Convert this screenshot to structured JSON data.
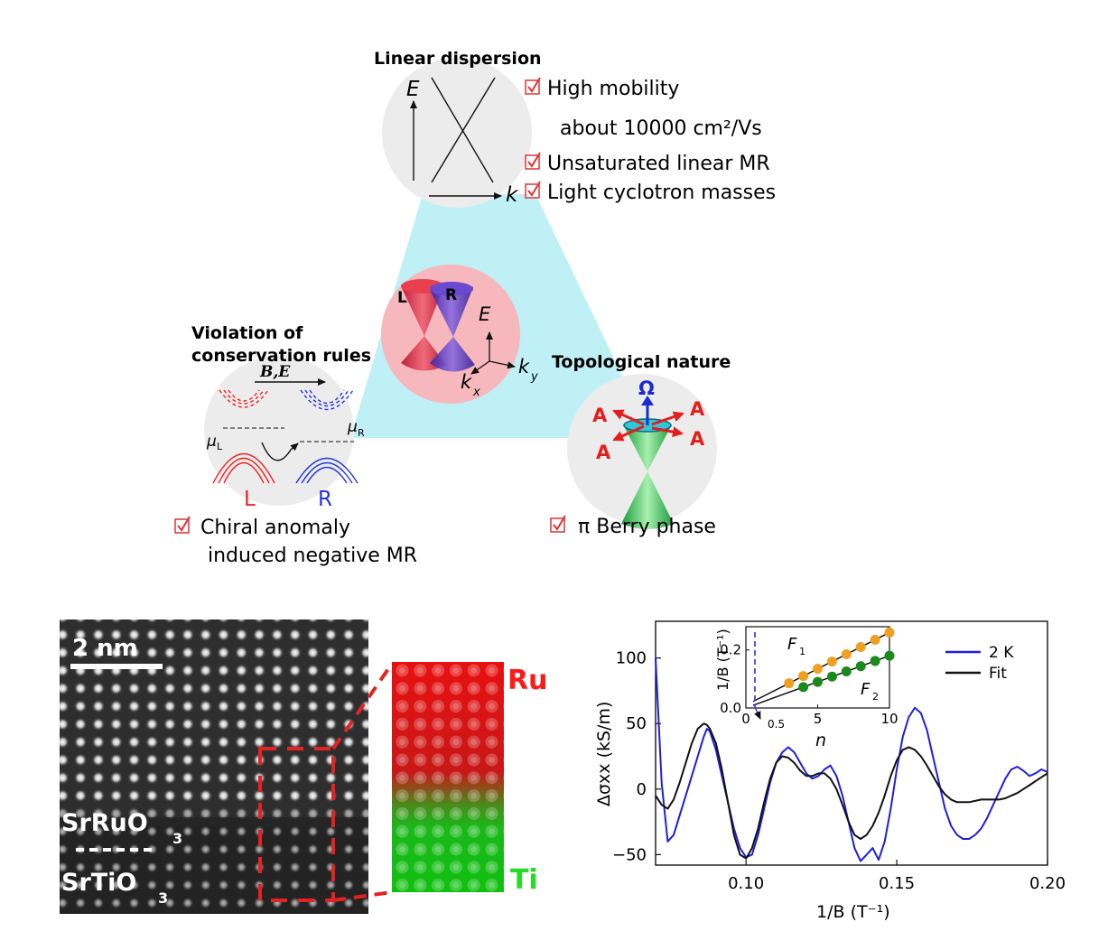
{
  "top_figure": {
    "center": {
      "cone_left": "L",
      "cone_right": "R",
      "axis_e": "E",
      "axis_kx": "k",
      "axis_kx_sub": "x",
      "axis_ky": "k",
      "axis_ky_sub": "y"
    },
    "linear_dispersion": {
      "title": "Linear dispersion",
      "axis_e": "E",
      "axis_k": "k",
      "items": [
        {
          "label": "High mobility"
        },
        {
          "label": "about 10000 cm²/Vs",
          "checked": false
        },
        {
          "label": "Unsaturated linear MR"
        },
        {
          "label": "Light cyclotron masses"
        }
      ]
    },
    "violation": {
      "title_line1": "Violation of",
      "title_line2": "conservation rules",
      "field_label": "B,E",
      "mu_left": "μ",
      "mu_left_sub": "L",
      "mu_right": "μ",
      "mu_right_sub": "R",
      "label_left": "L",
      "label_right": "R",
      "item_line1": "Chiral anomaly",
      "item_line2": "induced negative MR"
    },
    "topological": {
      "title": "Topological nature",
      "omega": "Ω",
      "a_label": "A",
      "item": "π  Berry phase"
    }
  },
  "microscopy": {
    "scale_bar": "2 nm",
    "layer_top": "SrRuO",
    "layer_top_sub": "3",
    "layer_bottom": "SrTiO",
    "layer_bottom_sub": "3",
    "eds_top": "Ru",
    "eds_bottom": "Ti",
    "colors": {
      "ru": "#ff1a1a",
      "ti": "#22dd22",
      "box": "#e52222"
    }
  },
  "chart_data": [
    {
      "type": "line",
      "xlabel": "1/B (T⁻¹)",
      "ylabel": "Δσxx (kS/m)",
      "xlim": [
        0.07,
        0.2
      ],
      "ylim": [
        -58,
        128
      ],
      "xticks": [
        "0.10",
        "0.15",
        "0.20"
      ],
      "yticks": [
        "−50",
        "0",
        "50",
        "100"
      ],
      "legend_position": "top-right",
      "series": [
        {
          "name": "2 K",
          "color": "#1f1fdd",
          "x": [
            0.07,
            0.072,
            0.074,
            0.076,
            0.078,
            0.08,
            0.082,
            0.084,
            0.086,
            0.087,
            0.088,
            0.09,
            0.092,
            0.094,
            0.096,
            0.098,
            0.1,
            0.102,
            0.104,
            0.106,
            0.108,
            0.11,
            0.112,
            0.114,
            0.116,
            0.118,
            0.12,
            0.122,
            0.124,
            0.126,
            0.128,
            0.13,
            0.132,
            0.134,
            0.136,
            0.138,
            0.14,
            0.142,
            0.144,
            0.146,
            0.148,
            0.15,
            0.152,
            0.154,
            0.156,
            0.158,
            0.16,
            0.162,
            0.164,
            0.166,
            0.168,
            0.17,
            0.172,
            0.174,
            0.176,
            0.178,
            0.18,
            0.182,
            0.184,
            0.186,
            0.188,
            0.19,
            0.192,
            0.194,
            0.196,
            0.198,
            0.2
          ],
          "y": [
            100,
            5,
            -40,
            -35,
            -20,
            -5,
            10,
            25,
            40,
            46,
            44,
            30,
            10,
            -10,
            -30,
            -45,
            -52,
            -50,
            -35,
            -15,
            5,
            20,
            28,
            32,
            28,
            20,
            12,
            8,
            10,
            15,
            18,
            10,
            -5,
            -25,
            -45,
            -55,
            -50,
            -45,
            -54,
            -40,
            -15,
            15,
            40,
            55,
            62,
            58,
            45,
            25,
            5,
            -15,
            -28,
            -35,
            -38,
            -38,
            -35,
            -30,
            -22,
            -12,
            -2,
            8,
            15,
            17,
            14,
            10,
            12,
            15,
            13
          ]
        },
        {
          "name": "Fit",
          "color": "#111111",
          "x": [
            0.07,
            0.072,
            0.074,
            0.076,
            0.078,
            0.08,
            0.082,
            0.084,
            0.086,
            0.087,
            0.088,
            0.09,
            0.092,
            0.094,
            0.096,
            0.098,
            0.1,
            0.102,
            0.104,
            0.106,
            0.108,
            0.11,
            0.112,
            0.114,
            0.116,
            0.118,
            0.12,
            0.122,
            0.124,
            0.126,
            0.128,
            0.13,
            0.132,
            0.134,
            0.136,
            0.138,
            0.14,
            0.142,
            0.144,
            0.146,
            0.148,
            0.15,
            0.152,
            0.154,
            0.156,
            0.158,
            0.16,
            0.162,
            0.164,
            0.166,
            0.168,
            0.17,
            0.172,
            0.174,
            0.176,
            0.178,
            0.18,
            0.182,
            0.184,
            0.186,
            0.188,
            0.19,
            0.192,
            0.194,
            0.196,
            0.198,
            0.2
          ],
          "y": [
            -5,
            -12,
            -15,
            -8,
            5,
            20,
            35,
            46,
            50,
            49,
            46,
            35,
            15,
            -10,
            -35,
            -50,
            -53,
            -45,
            -30,
            -10,
            8,
            20,
            25,
            24,
            20,
            14,
            10,
            10,
            12,
            12,
            8,
            0,
            -12,
            -25,
            -35,
            -38,
            -35,
            -28,
            -18,
            -5,
            10,
            22,
            30,
            32,
            30,
            25,
            18,
            10,
            2,
            -4,
            -8,
            -10,
            -10,
            -10,
            -9,
            -8,
            -8,
            -8,
            -8,
            -7,
            -5,
            -3,
            0,
            3,
            6,
            9,
            12
          ]
        }
      ]
    },
    {
      "type": "scatter",
      "xlabel": "n",
      "ylabel": "1/B (T⁻¹)",
      "xlim": [
        0,
        10
      ],
      "ylim": [
        0,
        0.28
      ],
      "xticks": [
        "0",
        "5",
        "10"
      ],
      "yticks": [
        "0.0",
        "0.2"
      ],
      "intercept_tick": "0.5",
      "series": [
        {
          "name": "F",
          "name_sub": "1",
          "color": "#f0a020",
          "x": [
            3,
            4,
            5,
            6,
            7,
            8,
            9,
            10
          ],
          "y": [
            0.085,
            0.11,
            0.135,
            0.16,
            0.185,
            0.21,
            0.235,
            0.26
          ]
        },
        {
          "name": "F",
          "name_sub": "2",
          "color": "#1a8a1a",
          "x": [
            4,
            5,
            6,
            7,
            8,
            9,
            10
          ],
          "y": [
            0.072,
            0.09,
            0.108,
            0.126,
            0.144,
            0.162,
            0.18
          ]
        }
      ]
    }
  ]
}
